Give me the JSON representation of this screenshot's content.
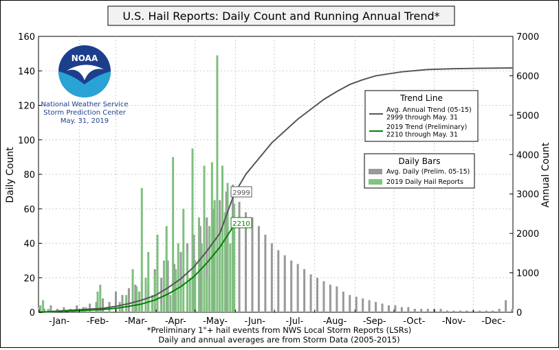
{
  "chart_data": {
    "type": "bar",
    "title": "U.S. Hail Reports: Daily Count and Running Annual Trend*",
    "ylabel": "Daily Count",
    "y2label": "Annual Count",
    "ylim": [
      0,
      160
    ],
    "y2lim": [
      0,
      7000
    ],
    "yticks": [
      "0",
      "20",
      "40",
      "60",
      "80",
      "100",
      "120",
      "140",
      "160"
    ],
    "y2ticks": [
      "0",
      "1000",
      "2000",
      "3000",
      "4000",
      "5000",
      "6000",
      "7000"
    ],
    "months": [
      "-Jan-",
      "-Feb-",
      "-Mar-",
      "-Apr-",
      "-May-",
      "-Jun-",
      "-Jul-",
      "-Aug-",
      "-Sep-",
      "-Oct-",
      "-Nov-",
      "-Dec-"
    ],
    "grid": true,
    "footnotes": [
      "*Preliminary 1\"+ hail events from NWS Local Storm Reports (LSRs)",
      "Daily and annual averages are from Storm Data (2005-2015)"
    ],
    "logo": {
      "text": "NOAA",
      "lines": [
        "National Weather Service",
        "Storm Prediction Center",
        "May. 31, 2019"
      ]
    },
    "legend_trend": {
      "title": "Trend Line",
      "items": [
        {
          "label_lines": [
            "Avg. Annual Trend (05-15)",
            "2999 through May. 31"
          ],
          "color": "#555555"
        },
        {
          "label_lines": [
            "2019 Trend (Preliminary)",
            "2210 through May. 31"
          ],
          "color": "#008000"
        }
      ]
    },
    "legend_bars": {
      "title": "Daily Bars",
      "items": [
        {
          "label": "Avg. Daily (Prelim. 05-15)",
          "color": "#999999"
        },
        {
          "label": "2019 Daily Hail Reports",
          "color": "#80c480"
        }
      ]
    },
    "annotations": [
      {
        "text": "2999",
        "day": 151,
        "value": 2999,
        "color": "#555555"
      },
      {
        "text": "2210",
        "day": 151,
        "value": 2210,
        "color": "#008000"
      }
    ],
    "series": [
      {
        "name": "Avg. Daily (Prelim. 05-15)",
        "kind": "bars",
        "color": "#999999",
        "points": [
          [
            1,
            3
          ],
          [
            5,
            2
          ],
          [
            10,
            4
          ],
          [
            15,
            2
          ],
          [
            20,
            3
          ],
          [
            25,
            2
          ],
          [
            30,
            4
          ],
          [
            35,
            3
          ],
          [
            40,
            5
          ],
          [
            45,
            6
          ],
          [
            50,
            8
          ],
          [
            55,
            6
          ],
          [
            60,
            12
          ],
          [
            65,
            10
          ],
          [
            70,
            14
          ],
          [
            75,
            16
          ],
          [
            80,
            18
          ],
          [
            85,
            15
          ],
          [
            90,
            25
          ],
          [
            95,
            20
          ],
          [
            100,
            30
          ],
          [
            105,
            28
          ],
          [
            110,
            35
          ],
          [
            115,
            40
          ],
          [
            120,
            45
          ],
          [
            125,
            50
          ],
          [
            130,
            55
          ],
          [
            135,
            60
          ],
          [
            140,
            65
          ],
          [
            145,
            70
          ],
          [
            150,
            74
          ],
          [
            155,
            64
          ],
          [
            160,
            58
          ],
          [
            165,
            55
          ],
          [
            170,
            50
          ],
          [
            175,
            45
          ],
          [
            180,
            40
          ],
          [
            185,
            36
          ],
          [
            190,
            33
          ],
          [
            195,
            30
          ],
          [
            200,
            28
          ],
          [
            205,
            25
          ],
          [
            210,
            22
          ],
          [
            215,
            20
          ],
          [
            220,
            18
          ],
          [
            225,
            16
          ],
          [
            230,
            15
          ],
          [
            235,
            12
          ],
          [
            240,
            10
          ],
          [
            245,
            9
          ],
          [
            250,
            8
          ],
          [
            255,
            7
          ],
          [
            260,
            6
          ],
          [
            265,
            5
          ],
          [
            270,
            4
          ],
          [
            275,
            4
          ],
          [
            280,
            3
          ],
          [
            285,
            3
          ],
          [
            290,
            2
          ],
          [
            295,
            2
          ],
          [
            300,
            2
          ],
          [
            305,
            2
          ],
          [
            310,
            2
          ],
          [
            315,
            1
          ],
          [
            320,
            1
          ],
          [
            325,
            1
          ],
          [
            330,
            1
          ],
          [
            335,
            1
          ],
          [
            340,
            1
          ],
          [
            345,
            1
          ],
          [
            350,
            1
          ],
          [
            355,
            2
          ],
          [
            360,
            7
          ],
          [
            365,
            2
          ]
        ]
      },
      {
        "name": "2019 Daily Hail Reports",
        "kind": "bars",
        "color": "#7fbf7f",
        "points": [
          [
            2,
            4
          ],
          [
            4,
            7
          ],
          [
            8,
            2
          ],
          [
            15,
            1
          ],
          [
            25,
            2
          ],
          [
            34,
            2
          ],
          [
            37,
            3
          ],
          [
            46,
            12
          ],
          [
            48,
            16
          ],
          [
            55,
            3
          ],
          [
            63,
            6
          ],
          [
            68,
            10
          ],
          [
            73,
            25
          ],
          [
            76,
            15
          ],
          [
            78,
            12
          ],
          [
            80,
            72
          ],
          [
            83,
            20
          ],
          [
            85,
            35
          ],
          [
            88,
            10
          ],
          [
            90,
            22
          ],
          [
            92,
            45
          ],
          [
            95,
            5
          ],
          [
            97,
            30
          ],
          [
            99,
            50
          ],
          [
            102,
            10
          ],
          [
            104,
            90
          ],
          [
            106,
            25
          ],
          [
            108,
            40
          ],
          [
            110,
            15
          ],
          [
            112,
            60
          ],
          [
            115,
            35
          ],
          [
            117,
            20
          ],
          [
            119,
            95
          ],
          [
            121,
            30
          ],
          [
            124,
            55
          ],
          [
            126,
            40
          ],
          [
            128,
            85
          ],
          [
            130,
            20
          ],
          [
            132,
            50
          ],
          [
            134,
            87
          ],
          [
            136,
            65
          ],
          [
            138,
            149
          ],
          [
            140,
            45
          ],
          [
            142,
            85
          ],
          [
            144,
            58
          ],
          [
            146,
            75
          ],
          [
            148,
            40
          ],
          [
            150,
            54
          ],
          [
            151,
            63
          ]
        ]
      },
      {
        "name": "Avg. Annual Trend (05-15)",
        "kind": "line",
        "color": "#555555",
        "axis": "right",
        "points": [
          [
            1,
            0
          ],
          [
            30,
            60
          ],
          [
            50,
            100
          ],
          [
            60,
            150
          ],
          [
            70,
            220
          ],
          [
            80,
            310
          ],
          [
            90,
            420
          ],
          [
            100,
            620
          ],
          [
            110,
            850
          ],
          [
            120,
            1150
          ],
          [
            130,
            1550
          ],
          [
            140,
            2000
          ],
          [
            151,
            2999
          ],
          [
            160,
            3500
          ],
          [
            170,
            3900
          ],
          [
            180,
            4300
          ],
          [
            190,
            4600
          ],
          [
            200,
            4900
          ],
          [
            210,
            5150
          ],
          [
            220,
            5400
          ],
          [
            230,
            5600
          ],
          [
            240,
            5780
          ],
          [
            250,
            5900
          ],
          [
            260,
            6000
          ],
          [
            270,
            6050
          ],
          [
            280,
            6100
          ],
          [
            290,
            6130
          ],
          [
            300,
            6160
          ],
          [
            320,
            6180
          ],
          [
            340,
            6190
          ],
          [
            365,
            6200
          ]
        ]
      },
      {
        "name": "2019 Trend (Preliminary)",
        "kind": "line",
        "color": "#008000",
        "axis": "right",
        "points": [
          [
            1,
            0
          ],
          [
            30,
            40
          ],
          [
            50,
            70
          ],
          [
            60,
            100
          ],
          [
            70,
            150
          ],
          [
            80,
            210
          ],
          [
            90,
            310
          ],
          [
            100,
            460
          ],
          [
            110,
            650
          ],
          [
            120,
            900
          ],
          [
            130,
            1250
          ],
          [
            140,
            1650
          ],
          [
            151,
            2210
          ]
        ]
      }
    ]
  }
}
